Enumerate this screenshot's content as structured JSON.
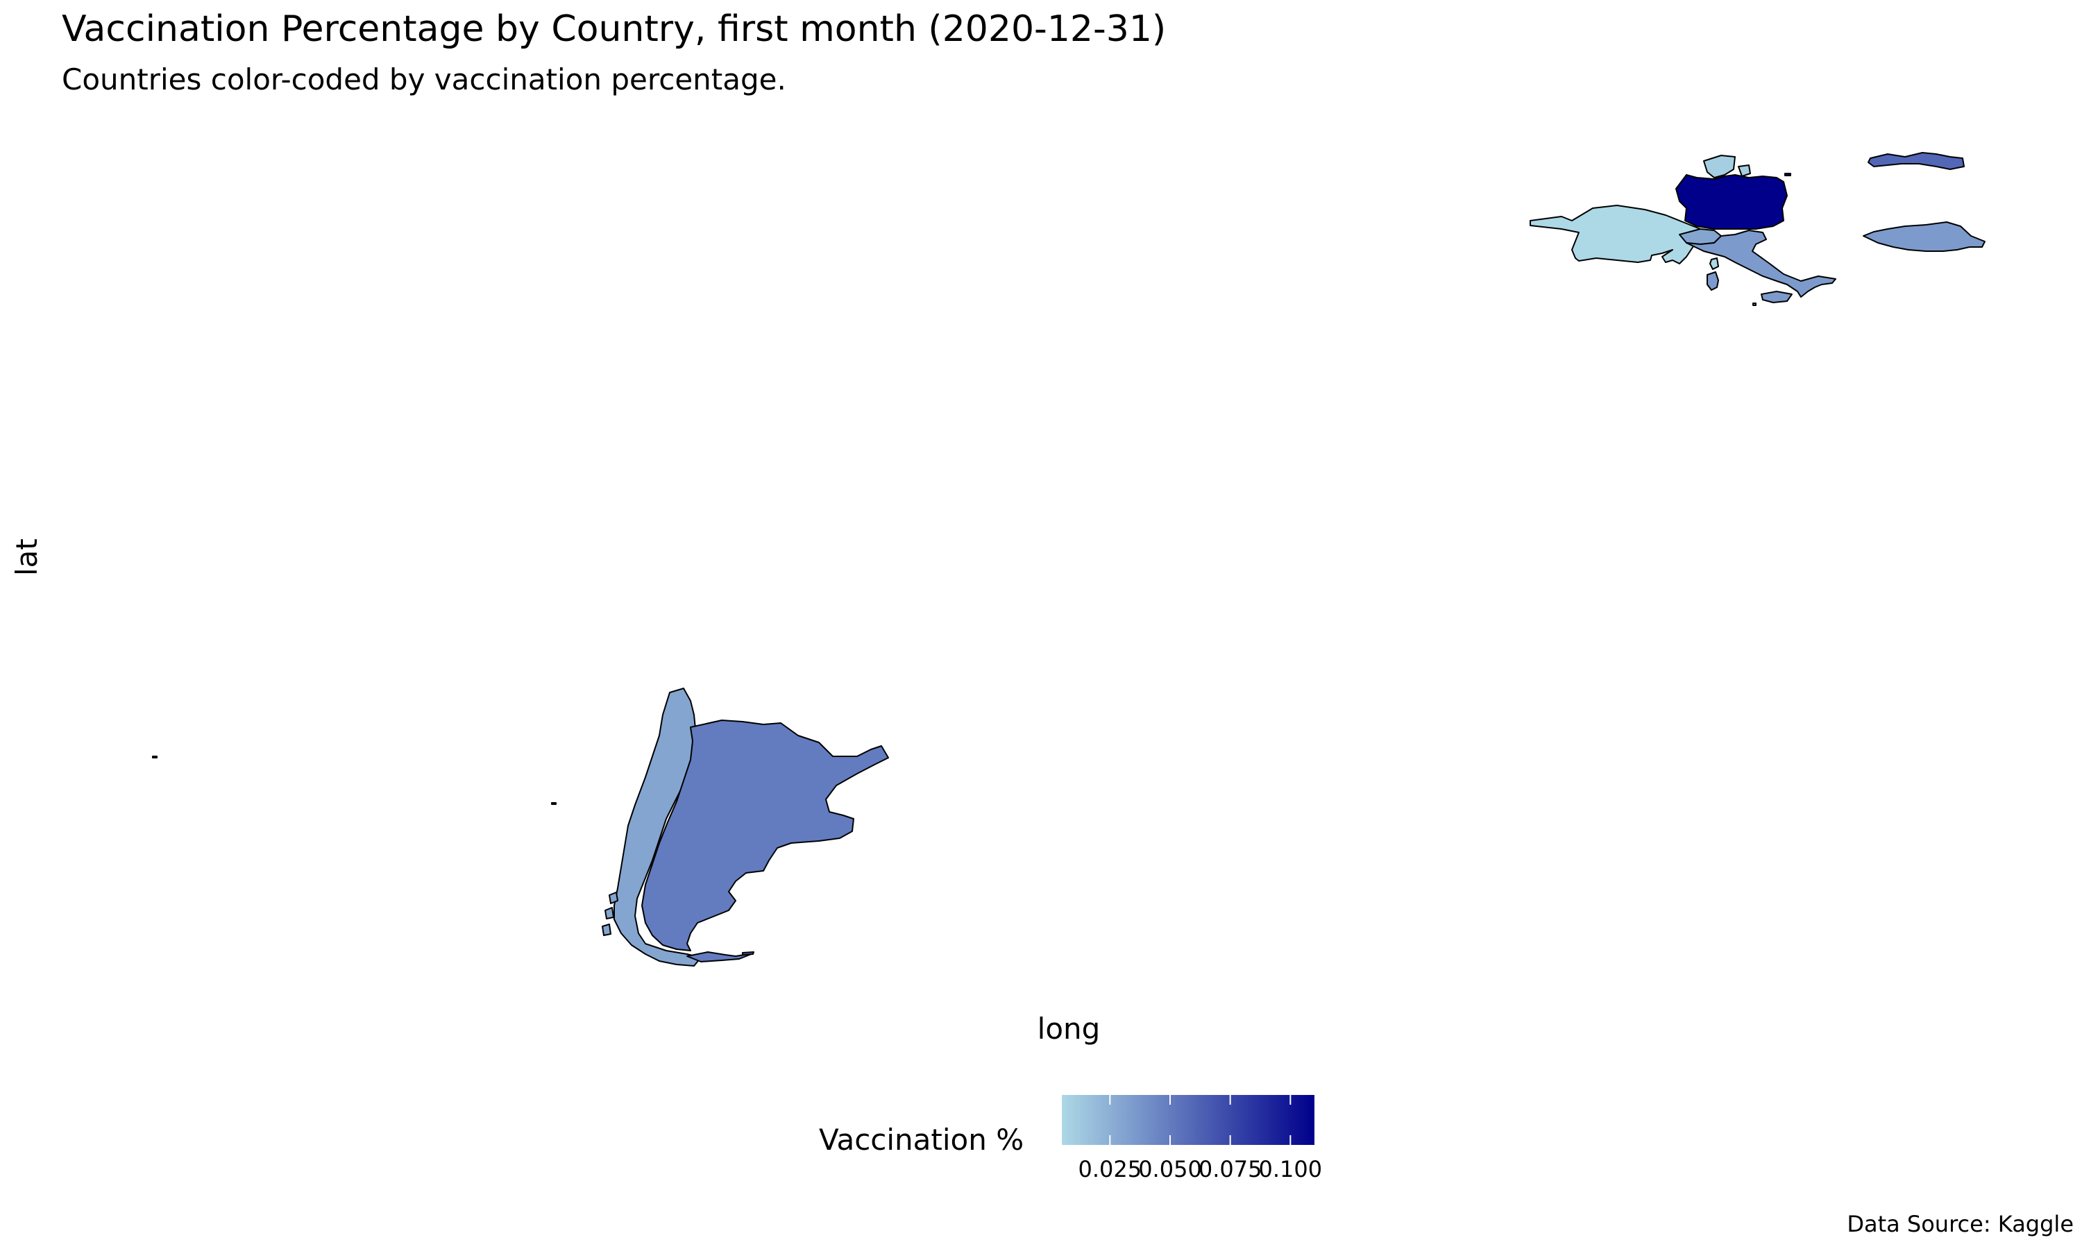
{
  "chart_data": {
    "type": "choropleth",
    "title": "Vaccination Percentage by Country, first month (2020-12-31)",
    "subtitle": "Countries color-coded by vaccination percentage.",
    "xlabel": "long",
    "ylabel": "lat",
    "caption": "Data Source: Kaggle",
    "legend": {
      "title": "Vaccination %",
      "placement": "bottom",
      "ticks": [
        "0.025",
        "0.050",
        "0.075",
        "0.100"
      ],
      "tick_values": [
        0.025,
        0.05,
        0.075,
        0.1
      ],
      "range": [
        0.005,
        0.11
      ],
      "low_color": "#add8e6",
      "high_color": "#00008b"
    },
    "regions": [
      {
        "id": "germany",
        "value": 0.11
      },
      {
        "id": "denmark",
        "value": 0.01
      },
      {
        "id": "france",
        "value": 0.005
      },
      {
        "id": "italy",
        "value": 0.035
      },
      {
        "id": "switzerland",
        "value": 0.03
      },
      {
        "id": "sardinia",
        "value": 0.035
      },
      {
        "id": "sicily",
        "value": 0.035
      },
      {
        "id": "northern-island",
        "value": 0.06
      },
      {
        "id": "southern-island",
        "value": 0.035
      },
      {
        "id": "argentina",
        "value": 0.05
      },
      {
        "id": "chile",
        "value": 0.03
      }
    ]
  }
}
